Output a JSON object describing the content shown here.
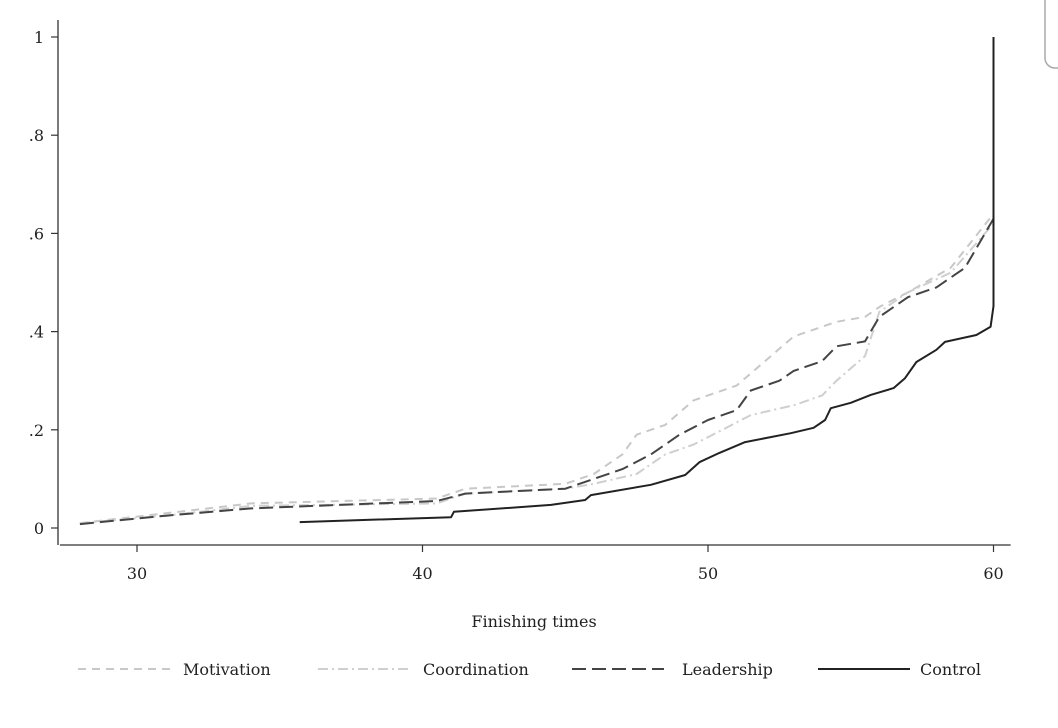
{
  "chart_data": {
    "type": "line",
    "title": "",
    "xlabel": "Finishing times",
    "ylabel": "",
    "xlim": [
      27.3,
      60.6
    ],
    "ylim": [
      0,
      1
    ],
    "x_ticks": [
      30,
      40,
      50,
      60
    ],
    "x_tick_labels": [
      "30",
      "40",
      "50",
      "60"
    ],
    "y_ticks": [
      0,
      0.2,
      0.4,
      0.6,
      0.8,
      1
    ],
    "y_tick_labels": [
      "0",
      ".2",
      ".4",
      ".6",
      ".8",
      "1"
    ],
    "grid": false,
    "legend_placement": "bottom",
    "series": [
      {
        "name": "Motivation",
        "color": "#c8c8c8",
        "dash": "8 6",
        "x": [
          28,
          31,
          34,
          40.5,
          41.5,
          45,
          46,
          47,
          47.5,
          48.5,
          49.5,
          51,
          52,
          53,
          54.5,
          55.5,
          56,
          57,
          58.5,
          60
        ],
        "y": [
          0.01,
          0.03,
          0.05,
          0.06,
          0.08,
          0.09,
          0.11,
          0.15,
          0.19,
          0.21,
          0.26,
          0.29,
          0.34,
          0.39,
          0.42,
          0.43,
          0.45,
          0.48,
          0.53,
          0.64
        ]
      },
      {
        "name": "Coordination",
        "color": "#cfcfcf",
        "dash": "10 4 2 4",
        "x": [
          28,
          31,
          34,
          40.5,
          41.5,
          45,
          46,
          47.5,
          48.5,
          49.5,
          50.5,
          51.5,
          53,
          54,
          54.5,
          55.5,
          56,
          57,
          58.5,
          60
        ],
        "y": [
          0.01,
          0.025,
          0.045,
          0.05,
          0.07,
          0.08,
          0.09,
          0.11,
          0.15,
          0.17,
          0.2,
          0.23,
          0.25,
          0.27,
          0.3,
          0.35,
          0.44,
          0.48,
          0.52,
          0.62
        ]
      },
      {
        "name": "Leadership",
        "color": "#444444",
        "dash": "14 6",
        "x": [
          28,
          31,
          34,
          40.5,
          41.5,
          45,
          46,
          47,
          48,
          49,
          50,
          51,
          51.5,
          52.5,
          53,
          54,
          54.5,
          55.5,
          56,
          57,
          58,
          59,
          60
        ],
        "y": [
          0.008,
          0.025,
          0.04,
          0.055,
          0.07,
          0.08,
          0.1,
          0.12,
          0.15,
          0.19,
          0.22,
          0.24,
          0.28,
          0.3,
          0.32,
          0.34,
          0.37,
          0.38,
          0.43,
          0.47,
          0.49,
          0.53,
          0.63
        ]
      },
      {
        "name": "Control",
        "color": "#222222",
        "dash": "",
        "x": [
          35.7,
          41,
          41.1,
          44.5,
          45.7,
          45.9,
          48,
          49.2,
          49.7,
          50.4,
          51.3,
          52.9,
          53.7,
          54.1,
          54.3,
          55,
          55.7,
          56.5,
          56.9,
          57.3,
          58,
          58.3,
          59.4,
          59.9,
          60,
          60
        ],
        "y": [
          0.012,
          0.022,
          0.033,
          0.047,
          0.057,
          0.067,
          0.088,
          0.108,
          0.134,
          0.153,
          0.175,
          0.193,
          0.204,
          0.22,
          0.244,
          0.255,
          0.271,
          0.285,
          0.305,
          0.338,
          0.363,
          0.379,
          0.393,
          0.41,
          0.452,
          1.0
        ]
      }
    ]
  }
}
